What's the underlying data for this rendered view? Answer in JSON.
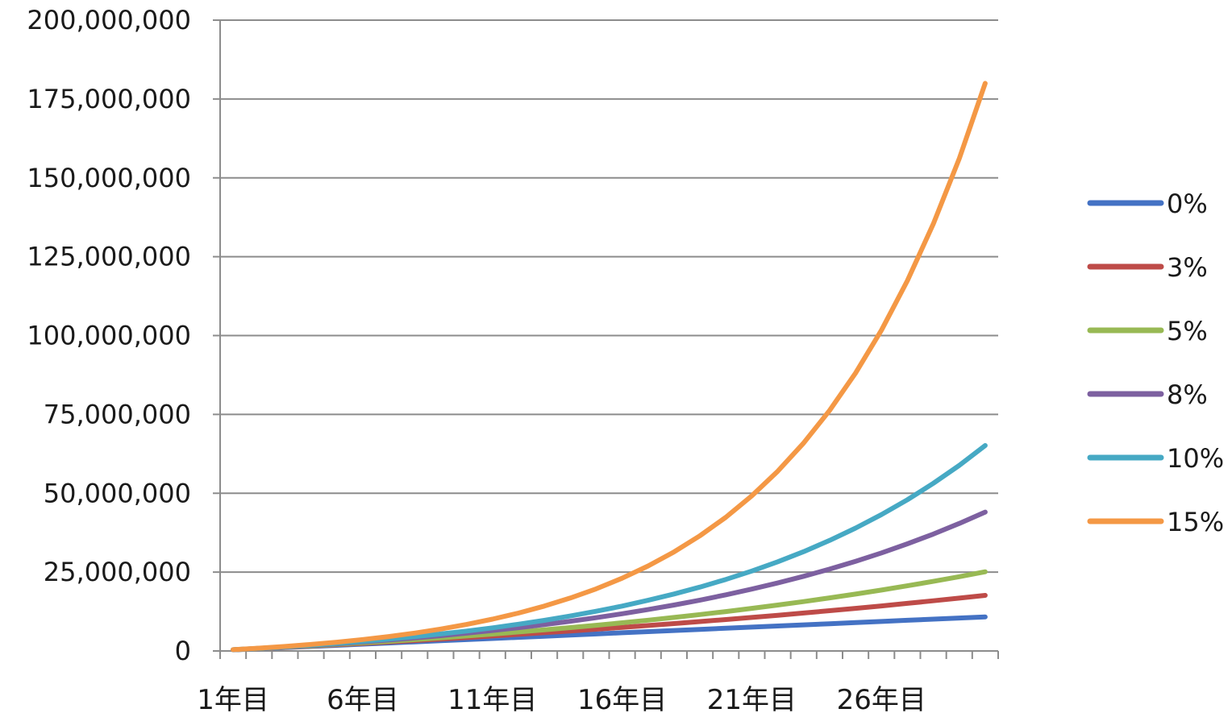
{
  "chart_data": {
    "type": "line",
    "title": "",
    "xlabel": "",
    "ylabel": "",
    "x": [
      "1年目",
      "2年目",
      "3年目",
      "4年目",
      "5年目",
      "6年目",
      "7年目",
      "8年目",
      "9年目",
      "10年目",
      "11年目",
      "12年目",
      "13年目",
      "14年目",
      "15年目",
      "16年目",
      "17年目",
      "18年目",
      "19年目",
      "20年目",
      "21年目",
      "22年目",
      "23年目",
      "24年目",
      "25年目",
      "26年目",
      "27年目",
      "28年目",
      "29年目",
      "30年目"
    ],
    "x_tick_labels": [
      "1年目",
      "6年目",
      "11年目",
      "16年目",
      "21年目",
      "26年目"
    ],
    "ylim": [
      0,
      200000000
    ],
    "y_tick_labels": [
      "0",
      "25,000,000",
      "50,000,000",
      "75,000,000",
      "100,000,000",
      "125,000,000",
      "150,000,000",
      "175,000,000",
      "200,000,000"
    ],
    "grid": true,
    "legend_position": "right",
    "series": [
      {
        "name": "0%",
        "color": "#4472c4",
        "values": [
          360000,
          720000,
          1080000,
          1440000,
          1800000,
          2160000,
          2520000,
          2880000,
          3240000,
          3600000,
          3960000,
          4320000,
          4680000,
          5040000,
          5400000,
          5760000,
          6120000,
          6480000,
          6840000,
          7200000,
          7560000,
          7920000,
          8280000,
          8640000,
          9000000,
          9360000,
          9720000,
          10080000,
          10440000,
          10800000
        ]
      },
      {
        "name": "3%",
        "color": "#be4b48",
        "values": [
          370800,
          752724,
          1146106,
          1551289,
          1968628,
          2398487,
          2841242,
          3297279,
          3767000,
          4250817,
          4749153,
          5262441,
          5791129,
          6335677,
          6896553,
          7474236,
          8069225,
          8682028,
          9313165,
          9963167,
          10632582,
          11321970,
          12031909,
          12762986,
          13515805,
          14290989,
          15089179,
          15911035,
          16757231,
          17628472
        ]
      },
      {
        "name": "5%",
        "color": "#98b954",
        "values": [
          378000,
          774900,
          1191645,
          1629227,
          2088689,
          2571123,
          3077679,
          3609563,
          4168041,
          4754443,
          5370165,
          6016674,
          6695507,
          7408283,
          8156697,
          8942532,
          9767658,
          10634041,
          11543743,
          12498930,
          13501877,
          14554971,
          15660719,
          16821755,
          18040843,
          19320885,
          20664929,
          22076176,
          23557985,
          25113884
        ]
      },
      {
        "name": "8%",
        "color": "#7d60a0",
        "values": [
          388800,
          808704,
          1262200,
          1751976,
          2280934,
          2852209,
          3469186,
          4135521,
          4855163,
          5632376,
          6471766,
          7378307,
          8357372,
          9414762,
          10556743,
          11790082,
          13122088,
          14560656,
          16114309,
          17792254,
          19604435,
          21561590,
          23675317,
          25958142,
          28423593,
          31086280,
          33961982,
          37067740,
          40421958,
          44044495
        ]
      },
      {
        "name": "10%",
        "color": "#46a9c4",
        "values": [
          396000,
          831600,
          1310760,
          1837836,
          2417620,
          3055382,
          3756920,
          4528612,
          5377473,
          6311220,
          7338342,
          8468176,
          9710994,
          11078093,
          12581903,
          14236093,
          16055702,
          18057272,
          20258999,
          22680899,
          25344989,
          28275488,
          31499036,
          35044940,
          38945434,
          43235977,
          47955575,
          53147133,
          58857846,
          65139631
        ]
      },
      {
        "name": "15%",
        "color": "#f49845",
        "values": [
          414000,
          890100,
          1437615,
          2067257,
          2791346,
          3624048,
          4581655,
          5682903,
          6949338,
          8405739,
          10080600,
          12006690,
          14221693,
          16768946,
          19698288,
          23067031,
          26941085,
          31396248,
          36519686,
          42411639,
          49187385,
          56979493,
          65940417,
          76245480,
          88096302,
          101724747,
          117397459,
          135421078,
          156147240,
          179982326
        ]
      }
    ]
  }
}
